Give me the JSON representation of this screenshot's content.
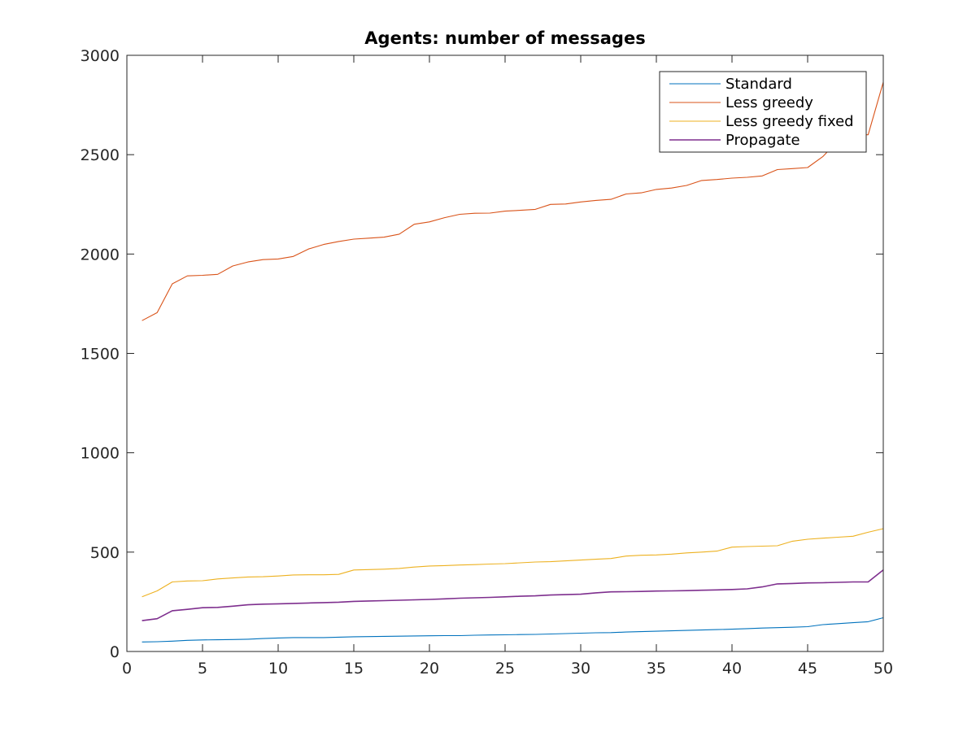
{
  "chart_data": {
    "type": "line",
    "title": "Agents: number of messages",
    "xlabel": "",
    "ylabel": "",
    "xlim": [
      0,
      50
    ],
    "ylim": [
      0,
      3000
    ],
    "xticks": [
      0,
      5,
      10,
      15,
      20,
      25,
      30,
      35,
      40,
      45,
      50
    ],
    "yticks": [
      0,
      500,
      1000,
      1500,
      2000,
      2500,
      3000
    ],
    "grid": false,
    "legend_position": "top-right",
    "x": [
      1,
      2,
      3,
      4,
      5,
      6,
      7,
      8,
      9,
      10,
      11,
      12,
      13,
      14,
      15,
      16,
      17,
      18,
      19,
      20,
      21,
      22,
      23,
      24,
      25,
      26,
      27,
      28,
      29,
      30,
      31,
      32,
      33,
      34,
      35,
      36,
      37,
      38,
      39,
      40,
      41,
      42,
      43,
      44,
      45,
      46,
      47,
      48,
      49,
      50
    ],
    "series": [
      {
        "name": "Standard",
        "color": "#0072bd",
        "values": [
          48,
          49,
          52,
          56,
          58,
          59,
          60,
          62,
          65,
          68,
          70,
          70,
          70,
          72,
          74,
          75,
          76,
          77,
          78,
          79,
          80,
          80,
          82,
          83,
          84,
          85,
          86,
          88,
          90,
          92,
          94,
          95,
          98,
          100,
          102,
          104,
          106,
          108,
          110,
          112,
          115,
          118,
          120,
          122,
          125,
          135,
          140,
          145,
          150,
          170
        ]
      },
      {
        "name": "Less greedy",
        "color": "#d95319",
        "values": [
          1665,
          1705,
          1850,
          1890,
          1893,
          1898,
          1940,
          1960,
          1972,
          1975,
          1988,
          2025,
          2048,
          2063,
          2075,
          2080,
          2085,
          2100,
          2150,
          2162,
          2183,
          2200,
          2205,
          2206,
          2216,
          2220,
          2225,
          2250,
          2252,
          2262,
          2270,
          2275,
          2302,
          2308,
          2325,
          2332,
          2345,
          2370,
          2375,
          2382,
          2386,
          2393,
          2425,
          2430,
          2435,
          2490,
          2570,
          2600,
          2600,
          2865
        ]
      },
      {
        "name": "Less greedy fixed",
        "color": "#edb120",
        "values": [
          275,
          305,
          350,
          355,
          356,
          365,
          370,
          375,
          376,
          380,
          385,
          386,
          386,
          388,
          410,
          412,
          414,
          418,
          425,
          430,
          432,
          435,
          437,
          440,
          442,
          446,
          450,
          452,
          456,
          460,
          464,
          468,
          480,
          484,
          486,
          490,
          496,
          500,
          505,
          525,
          528,
          530,
          532,
          555,
          565,
          570,
          575,
          580,
          600,
          618
        ]
      },
      {
        "name": "Propagate",
        "color": "#7e2f8e",
        "values": [
          155,
          165,
          205,
          212,
          220,
          222,
          228,
          235,
          238,
          240,
          242,
          244,
          246,
          248,
          252,
          254,
          256,
          258,
          260,
          262,
          265,
          268,
          270,
          272,
          275,
          278,
          280,
          284,
          286,
          288,
          295,
          300,
          301,
          302,
          304,
          305,
          306,
          308,
          310,
          312,
          315,
          325,
          340,
          342,
          345,
          346,
          348,
          350,
          350,
          410
        ]
      }
    ]
  }
}
